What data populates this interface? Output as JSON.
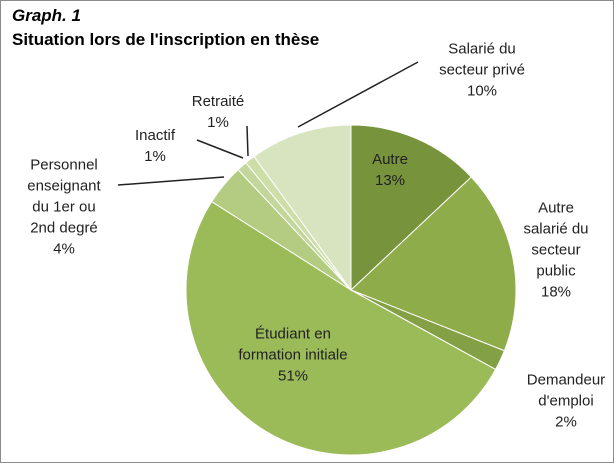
{
  "chart_data": {
    "type": "pie",
    "title": "Graph. 1",
    "subtitle": "Situation lors de l'inscription en thèse",
    "categories": [
      "Autre",
      "Autre salarié du secteur public",
      "Demandeur d'emploi",
      "Étudiant en formation initiale",
      "Personnel enseignant du 1er ou 2nd degré",
      "Inactif",
      "Retraité",
      "Salarié du secteur privé"
    ],
    "values": [
      13,
      18,
      2,
      51,
      4,
      1,
      1,
      10
    ],
    "value_labels": [
      "13%",
      "18%",
      "2%",
      "51%",
      "4%",
      "1%",
      "1%",
      "10%"
    ],
    "colors": [
      "#77933c",
      "#8fac4a",
      "#84a044",
      "#9bbb59",
      "#b3cc82",
      "#c3d69b",
      "#cddea9",
      "#d8e4bf"
    ]
  }
}
